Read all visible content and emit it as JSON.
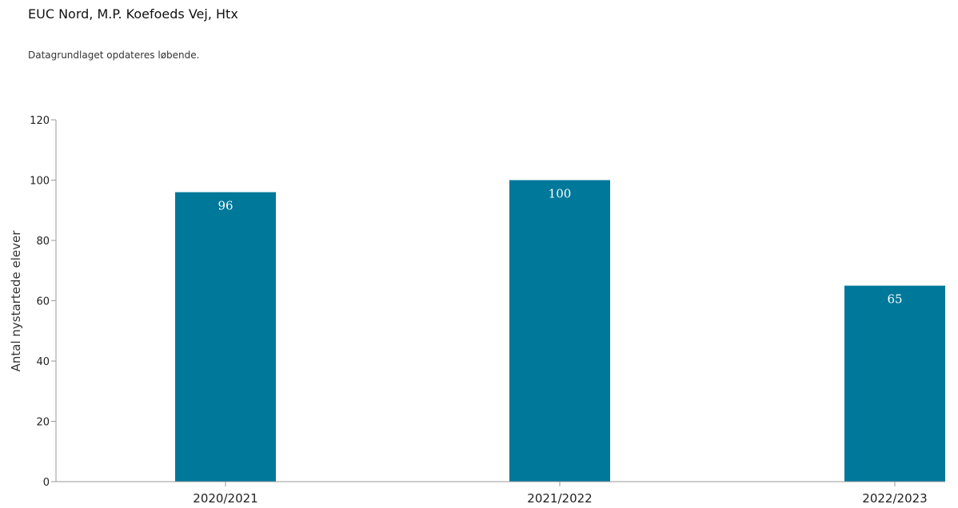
{
  "header": {
    "title": "EUC Nord, M.P. Koefoeds Vej, Htx",
    "subtitle": "Datagrundlaget opdateres løbende."
  },
  "chart_data": {
    "type": "bar",
    "categories": [
      "2020/2021",
      "2021/2022",
      "2022/2023"
    ],
    "values": [
      96,
      100,
      65
    ],
    "data_labels": [
      "96",
      "100",
      "65"
    ],
    "ylabel": "Antal nystartede elever",
    "xlabel": "",
    "ylim": [
      0,
      120
    ],
    "yticks": [
      0,
      20,
      40,
      60,
      80,
      100,
      120
    ],
    "ytick_labels": [
      "0",
      "20",
      "40",
      "60",
      "80",
      "100",
      "120"
    ],
    "bar_color": "#00789a",
    "grid": false,
    "legend": "none"
  }
}
